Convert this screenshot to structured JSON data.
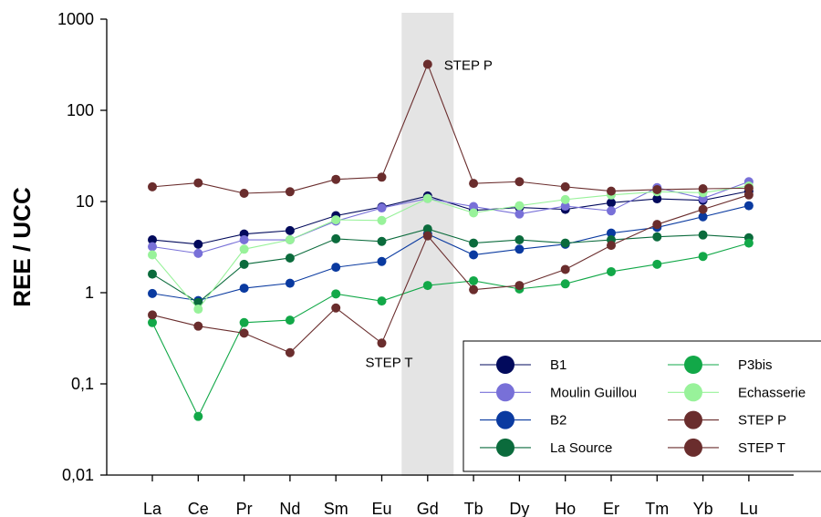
{
  "chart_data": {
    "type": "line",
    "title": "",
    "xlabel": "",
    "ylabel": "REE / UCC",
    "yscale": "log",
    "ylim": [
      0.01,
      1000
    ],
    "ytick_labels": [
      "0,01",
      "0,1",
      "1",
      "10",
      "100",
      "1000"
    ],
    "ytick_values": [
      0.01,
      0.1,
      1,
      10,
      100,
      1000
    ],
    "categories": [
      "La",
      "Ce",
      "Pr",
      "Nd",
      "Sm",
      "Eu",
      "Gd",
      "Tb",
      "Dy",
      "Ho",
      "Er",
      "Tm",
      "Yb",
      "Lu"
    ],
    "highlight_category": "Gd",
    "highlight_color": "#e4e4e4",
    "grid": false,
    "legend_position": "bottom-right",
    "series": [
      {
        "name": "B1",
        "color": "#020a5c",
        "values": [
          3.8,
          3.4,
          4.4,
          4.8,
          7.0,
          8.7,
          11.5,
          8.0,
          8.6,
          8.2,
          9.7,
          10.7,
          10.3,
          13.0
        ]
      },
      {
        "name": "Moulin Guillou",
        "color": "#7870d8",
        "values": [
          3.2,
          2.7,
          3.8,
          3.8,
          6.1,
          8.5,
          10.8,
          8.8,
          7.3,
          8.9,
          7.9,
          14.2,
          10.8,
          16.5
        ]
      },
      {
        "name": "B2",
        "color": "#0a3aa0",
        "values": [
          0.98,
          0.82,
          1.12,
          1.27,
          1.9,
          2.2,
          4.4,
          2.6,
          3.0,
          3.4,
          4.5,
          5.2,
          6.8,
          9.0
        ]
      },
      {
        "name": "La Source",
        "color": "#0b6b3c",
        "values": [
          1.6,
          0.78,
          2.05,
          2.4,
          3.9,
          3.65,
          5.0,
          3.5,
          3.8,
          3.5,
          3.8,
          4.1,
          4.3,
          4.0
        ]
      },
      {
        "name": "P3bis",
        "color": "#12a848",
        "values": [
          0.47,
          0.044,
          0.47,
          0.5,
          0.97,
          0.81,
          1.2,
          1.35,
          1.1,
          1.25,
          1.7,
          2.05,
          2.5,
          3.5
        ]
      },
      {
        "name": "Echasserie",
        "color": "#98f29a",
        "values": [
          2.6,
          0.66,
          3.0,
          3.8,
          6.3,
          6.2,
          10.8,
          7.5,
          9.0,
          10.5,
          11.8,
          12.8,
          12.5,
          14.8
        ]
      },
      {
        "name": "STEP P",
        "color": "#6a2d2d",
        "values": [
          14.5,
          16.0,
          12.3,
          12.8,
          17.5,
          18.5,
          320,
          15.8,
          16.5,
          14.5,
          13.0,
          13.5,
          13.8,
          14.0
        ]
      },
      {
        "name": "STEP T",
        "color": "#6a2d2d",
        "values": [
          0.57,
          0.43,
          0.36,
          0.22,
          0.68,
          0.28,
          4.2,
          1.08,
          1.2,
          1.8,
          3.3,
          5.6,
          8.2,
          11.8
        ]
      }
    ],
    "annotations": [
      {
        "text": "STEP P",
        "category": "Gd",
        "value": 320
      },
      {
        "text": "STEP T",
        "category": "Eu",
        "value": 0.28
      }
    ]
  }
}
